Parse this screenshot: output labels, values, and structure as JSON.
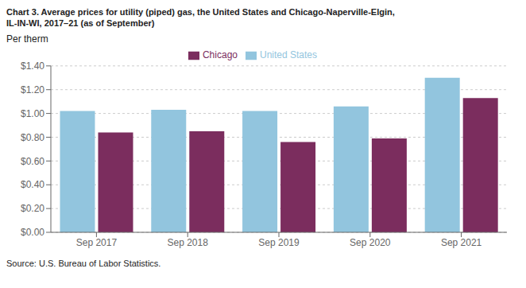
{
  "chart_data": {
    "type": "bar",
    "title": "Chart 3. Average prices for utility (piped) gas, the United States and Chicago-Naperville-Elgin,\nIL-IN-WI, 2017–21 (as of September)",
    "ylabel": "Per therm",
    "source": "Source: U.S. Bureau of Labor Statistics.",
    "categories": [
      "Sep 2017",
      "Sep 2018",
      "Sep 2019",
      "Sep 2020",
      "Sep 2021"
    ],
    "series": [
      {
        "name": "United States",
        "color": "#92C5DE",
        "values": [
          1.02,
          1.03,
          1.02,
          1.06,
          1.3
        ]
      },
      {
        "name": "Chicago",
        "color": "#7B2D5E",
        "values": [
          0.84,
          0.85,
          0.76,
          0.79,
          1.13
        ]
      }
    ],
    "ylim": [
      0,
      1.4
    ],
    "yticks": [
      {
        "value": 0.0,
        "label": "$0.00"
      },
      {
        "value": 0.2,
        "label": "$0.20"
      },
      {
        "value": 0.4,
        "label": "$0.40"
      },
      {
        "value": 0.6,
        "label": "$0.60"
      },
      {
        "value": 0.8,
        "label": "$0.80"
      },
      {
        "value": 1.0,
        "label": "$1.00"
      },
      {
        "value": 1.2,
        "label": "$1.20"
      },
      {
        "value": 1.4,
        "label": "$1.40"
      }
    ],
    "grid": true,
    "legend": "top"
  }
}
